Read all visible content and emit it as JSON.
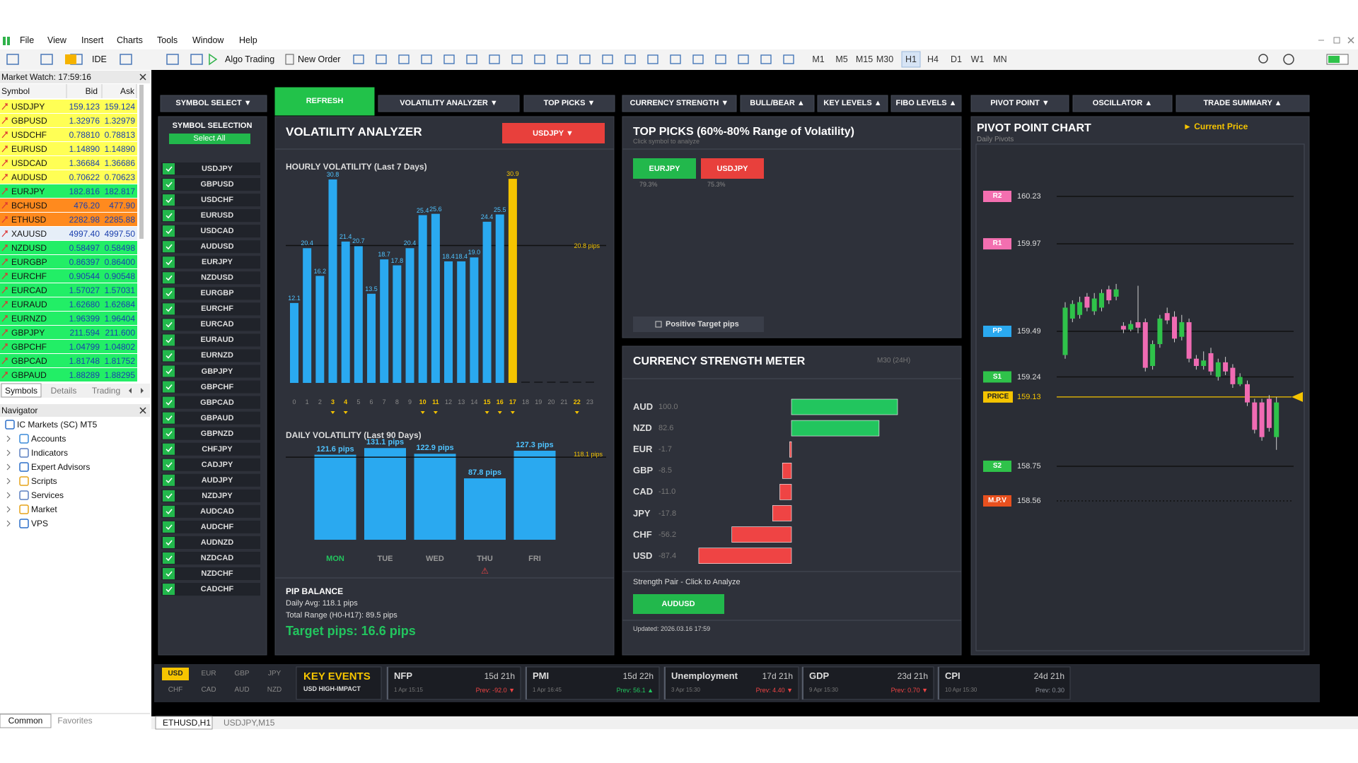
{
  "menu": [
    "File",
    "View",
    "Insert",
    "Charts",
    "Tools",
    "Window",
    "Help"
  ],
  "toolbar": {
    "ide": "IDE",
    "algo_trading": "Algo Trading",
    "new_order": "New Order",
    "timeframes": [
      "M1",
      "M5",
      "M15",
      "M30",
      "H1",
      "H4",
      "D1",
      "W1",
      "MN"
    ],
    "active_timeframe": "H1"
  },
  "market_watch": {
    "title": "Market Watch: 17:59:16",
    "columns": [
      "Symbol",
      "Bid",
      "Ask"
    ],
    "rows": [
      {
        "symbol": "USDJPY",
        "bid": "159.123",
        "ask": "159.124",
        "color": "#ffff55"
      },
      {
        "symbol": "GBPUSD",
        "bid": "1.32976",
        "ask": "1.32979",
        "color": "#ffff55"
      },
      {
        "symbol": "USDCHF",
        "bid": "0.78810",
        "ask": "0.78813",
        "color": "#ffff55"
      },
      {
        "symbol": "EURUSD",
        "bid": "1.14890",
        "ask": "1.14890",
        "color": "#ffff55"
      },
      {
        "symbol": "USDCAD",
        "bid": "1.36684",
        "ask": "1.36686",
        "color": "#ffff55"
      },
      {
        "symbol": "AUDUSD",
        "bid": "0.70622",
        "ask": "0.70623",
        "color": "#ffff55"
      },
      {
        "symbol": "EURJPY",
        "bid": "182.816",
        "ask": "182.817",
        "color": "#22ee66"
      },
      {
        "symbol": "BCHUSD",
        "bid": "476.20",
        "ask": "477.90",
        "color": "#ff8a1e"
      },
      {
        "symbol": "ETHUSD",
        "bid": "2282.98",
        "ask": "2285.88",
        "color": "#ff8a1e"
      },
      {
        "symbol": "XAUUSD",
        "bid": "4997.40",
        "ask": "4997.50",
        "color": "#e6eef8"
      },
      {
        "symbol": "NZDUSD",
        "bid": "0.58497",
        "ask": "0.58498",
        "color": "#22ee66"
      },
      {
        "symbol": "EURGBP",
        "bid": "0.86397",
        "ask": "0.86400",
        "color": "#22ee66"
      },
      {
        "symbol": "EURCHF",
        "bid": "0.90544",
        "ask": "0.90548",
        "color": "#22ee66"
      },
      {
        "symbol": "EURCAD",
        "bid": "1.57027",
        "ask": "1.57031",
        "color": "#22ee66"
      },
      {
        "symbol": "EURAUD",
        "bid": "1.62680",
        "ask": "1.62684",
        "color": "#22ee66"
      },
      {
        "symbol": "EURNZD",
        "bid": "1.96399",
        "ask": "1.96404",
        "color": "#22ee66"
      },
      {
        "symbol": "GBPJPY",
        "bid": "211.594",
        "ask": "211.600",
        "color": "#22ee66"
      },
      {
        "symbol": "GBPCHF",
        "bid": "1.04799",
        "ask": "1.04802",
        "color": "#22ee66"
      },
      {
        "symbol": "GBPCAD",
        "bid": "1.81748",
        "ask": "1.81752",
        "color": "#22ee66"
      },
      {
        "symbol": "GBPAUD",
        "bid": "1.88289",
        "ask": "1.88295",
        "color": "#22ee66"
      }
    ]
  },
  "tabs": [
    "Symbols",
    "Details",
    "Trading"
  ],
  "navigator": {
    "title": "Navigator",
    "items": [
      "IC Markets (SC) MT5",
      "Accounts",
      "Indicators",
      "Expert Advisors",
      "Scripts",
      "Services",
      "Market",
      "VPS"
    ]
  },
  "bottom_tabs": [
    "Common",
    "Favorites"
  ],
  "chart_tabs": [
    "ETHUSD,H1",
    "USDJPY,M15"
  ],
  "dashboard_nav": [
    "SYMBOL SELECT ▼",
    "REFRESH",
    "VOLATILITY ANALYZER ▼",
    "TOP PICKS ▼",
    "CURRENCY STRENGTH ▼",
    "BULL/BEAR ▲",
    "KEY LEVELS ▲",
    "FIBO LEVELS ▲",
    "PIVOT POINT ▼",
    "OSCILLATOR ▲",
    "TRADE SUMMARY ▲"
  ],
  "symbol_selection": {
    "title": "SYMBOL SELECTION",
    "select_all": "Select All",
    "symbols": [
      "USDJPY",
      "GBPUSD",
      "USDCHF",
      "EURUSD",
      "USDCAD",
      "AUDUSD",
      "EURJPY",
      "NZDUSD",
      "EURGBP",
      "EURCHF",
      "EURCAD",
      "EURAUD",
      "EURNZD",
      "GBPJPY",
      "GBPCHF",
      "GBPCAD",
      "GBPAUD",
      "GBPNZD",
      "CHFJPY",
      "CADJPY",
      "AUDJPY",
      "NZDJPY",
      "AUDCAD",
      "AUDCHF",
      "AUDNZD",
      "NZDCAD",
      "NZDCHF",
      "CADCHF"
    ]
  },
  "volatility": {
    "title": "VOLATILITY ANALYZER",
    "symbol": "USDJPY ▼",
    "hourly": {
      "title": "HOURLY VOLATILITY (Last 7 Days)",
      "hours": [
        0,
        1,
        2,
        3,
        4,
        5,
        6,
        7,
        8,
        9,
        10,
        11,
        12,
        13,
        14,
        15,
        16,
        17,
        18,
        19,
        20,
        21,
        22,
        23
      ],
      "values": [
        12.1,
        20.4,
        16.2,
        30.8,
        21.4,
        20.7,
        13.5,
        18.7,
        17.8,
        20.4,
        25.4,
        25.6,
        18.4,
        18.4,
        19,
        24.4,
        25.5,
        30.9,
        0,
        0,
        0,
        0,
        0,
        0
      ],
      "value_labels": [
        "12.1",
        "20.4",
        "16.2",
        "30.8",
        "21.4",
        "20.7",
        "13.5",
        "18.7",
        "17.8",
        "20.4",
        "25.4",
        "25.6",
        "18.4",
        "18.4",
        "19.0",
        "24.4",
        "25.5",
        "30.9",
        null,
        null,
        null,
        null,
        null,
        null
      ],
      "highlight_hours": [
        3,
        4,
        10,
        11,
        15,
        16,
        17,
        22
      ],
      "current_hour": 17,
      "color": "#2aa9f0",
      "current_color": "#f5c400",
      "average": 20.8,
      "average_label": "20.8 pips"
    },
    "daily": {
      "title": "DAILY VOLATILITY (Last 90 Days)",
      "days": [
        "MON",
        "TUE",
        "WED",
        "THU",
        "FRI"
      ],
      "values": [
        121.6,
        131.1,
        122.9,
        87.8,
        127.3
      ],
      "value_labels": [
        "121.6 pips",
        "131.1 pips",
        "122.9 pips",
        "87.8 pips",
        "127.3 pips"
      ],
      "warnings": [
        null,
        null,
        null,
        "⚠",
        null
      ],
      "average": 118.1,
      "average_label": "118.1 pips"
    }
  },
  "pip_balance": {
    "title": "PIP BALANCE",
    "daily_avg": "Daily Avg: 118.1 pips",
    "total_range": "Total Range (H0-H17): 89.5 pips",
    "target": "Target pips: 16.6 pips"
  },
  "top_picks": {
    "title": "TOP PICKS (60%-80% Range of Volatility)",
    "subtitle": "Click symbol to analyze",
    "picks": [
      {
        "symbol": "EURJPY",
        "range": "79.3%",
        "color": "#22b84c"
      },
      {
        "symbol": "USDJPY",
        "range": "75.3%",
        "color": "#e8403c"
      }
    ],
    "checkbox": "Positive Target pips"
  },
  "strength": {
    "title": "CURRENCY STRENGTH METER",
    "period": "M30 (24H)",
    "currencies": [
      "AUD",
      "NZD",
      "EUR",
      "GBP",
      "CAD",
      "JPY",
      "CHF",
      "USD"
    ],
    "values": [
      100,
      82.6,
      -1.7,
      -8.5,
      -11,
      -17.8,
      -56.2,
      -87.4
    ],
    "value_labels": [
      "100.0",
      "82.6",
      "-1.7",
      "-8.5",
      "-11.0",
      "-17.8",
      "-56.2",
      "-87.4"
    ],
    "positive_color": "#22c55e",
    "negative_color": "#ef4444",
    "pair_label": "Strength Pair - Click to Analyze",
    "pair": "AUDUSD",
    "updated": "Updated: 2026.03.16 17:59"
  },
  "pivot": {
    "title": "PIVOT POINT CHART",
    "legend": "► Current Price",
    "subtitle": "Daily Pivots",
    "levels": [
      {
        "label": "R2",
        "price": 160.23,
        "color": "#f36fb0",
        "line": "solid"
      },
      {
        "label": "R1",
        "price": 159.97,
        "color": "#f36fb0",
        "line": "solid"
      },
      {
        "label": "PP",
        "price": 159.49,
        "color": "#2aa9f0",
        "line": "solid"
      },
      {
        "label": "S1",
        "price": 159.24,
        "color": "#2fc24a",
        "line": "solid"
      },
      {
        "label": "PRICE",
        "price": 159.13,
        "color": "#f5c400",
        "line": "current"
      },
      {
        "label": "S2",
        "price": 158.75,
        "color": "#2fc24a",
        "line": "solid"
      },
      {
        "label": "M.P.V",
        "price": 158.56,
        "color": "#e8501e",
        "line": "dotted"
      }
    ],
    "candles": [
      [
        159.36,
        159.65,
        159.34,
        159.62
      ],
      [
        159.56,
        159.66,
        159.54,
        159.64
      ],
      [
        159.58,
        159.68,
        159.56,
        159.65
      ],
      [
        159.68,
        159.7,
        159.6,
        159.62
      ],
      [
        159.6,
        159.7,
        159.58,
        159.67
      ],
      [
        159.62,
        159.72,
        159.6,
        159.7
      ],
      [
        159.72,
        159.74,
        159.64,
        159.66
      ],
      [
        159.68,
        159.75,
        159.66,
        159.72
      ],
      [
        159.52,
        159.54,
        159.48,
        159.5
      ],
      [
        159.5,
        159.55,
        159.49,
        159.53
      ],
      [
        159.54,
        159.74,
        159.48,
        159.51
      ],
      [
        159.54,
        159.56,
        159.27,
        159.29
      ],
      [
        159.3,
        159.44,
        159.28,
        159.42
      ],
      [
        159.42,
        159.58,
        159.4,
        159.56
      ],
      [
        159.59,
        159.62,
        159.53,
        159.55
      ],
      [
        159.57,
        159.6,
        159.43,
        159.45
      ],
      [
        159.46,
        159.58,
        159.44,
        159.54
      ],
      [
        159.54,
        159.56,
        159.32,
        159.34
      ],
      [
        159.34,
        159.36,
        159.28,
        159.3
      ],
      [
        159.3,
        159.38,
        159.28,
        159.33
      ],
      [
        159.37,
        159.4,
        159.25,
        159.27
      ],
      [
        159.24,
        159.34,
        159.22,
        159.32
      ],
      [
        159.32,
        159.35,
        159.25,
        159.27
      ],
      [
        159.29,
        159.31,
        159.18,
        159.2
      ],
      [
        159.2,
        159.26,
        159.19,
        159.24
      ],
      [
        159.2,
        159.22,
        159.08,
        159.1
      ],
      [
        159.1,
        159.12,
        158.93,
        158.95
      ],
      [
        159.1,
        159.12,
        158.89,
        158.91
      ],
      [
        159.12,
        159.14,
        158.94,
        158.96
      ],
      [
        158.91,
        159.13,
        158.84,
        159.1
      ]
    ]
  },
  "events": {
    "currencies": [
      "USD",
      "EUR",
      "GBP",
      "JPY",
      "CHF",
      "CAD",
      "AUD",
      "NZD"
    ],
    "active_currency": "USD",
    "title": "KEY EVENTS",
    "subtitle": "USD HIGH-IMPACT",
    "items": [
      {
        "name": "NFP",
        "countdown": "15d 21h",
        "time": "1 Apr 15:15",
        "prev": "Prev: -92.0 ▼",
        "prev_color": "#ef4444"
      },
      {
        "name": "PMI",
        "countdown": "15d 22h",
        "time": "1 Apr 16:45",
        "prev": "Prev: 56.1 ▲",
        "prev_color": "#22c55e"
      },
      {
        "name": "Unemployment",
        "countdown": "17d 21h",
        "time": "3 Apr 15:30",
        "prev": "Prev: 4.40 ▼",
        "prev_color": "#ef4444"
      },
      {
        "name": "GDP",
        "countdown": "23d 21h",
        "time": "9 Apr 15:30",
        "prev": "Prev: 0.70 ▼",
        "prev_color": "#ef4444"
      },
      {
        "name": "CPI",
        "countdown": "24d 21h",
        "time": "10 Apr 15:30",
        "prev": "Prev: 0.30",
        "prev_color": "#8a8f99"
      }
    ]
  }
}
